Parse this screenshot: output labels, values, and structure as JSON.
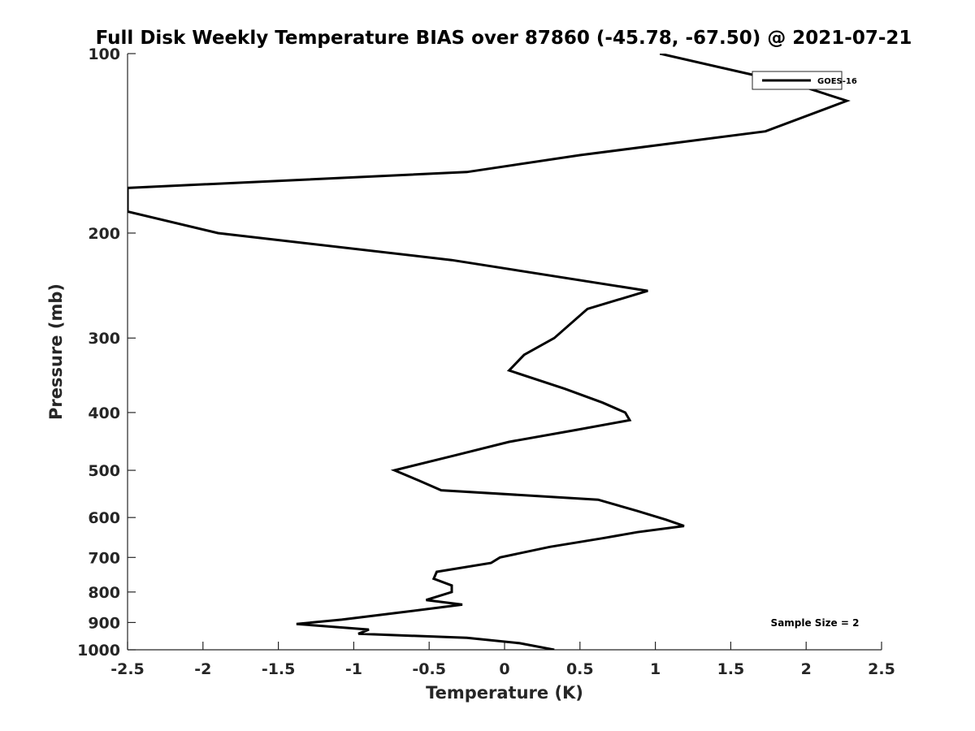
{
  "chart_data": {
    "type": "line",
    "title": "Full Disk Weekly Temperature BIAS over 87860 (-45.78, -67.50) @ 2021-07-21",
    "xlabel": "Temperature (K)",
    "ylabel": "Pressure (mb)",
    "xlim": [
      -2.5,
      2.5
    ],
    "ylim": [
      100,
      1000
    ],
    "yscale": "log",
    "yreverse": true,
    "grid": false,
    "xticks": [
      -2.5,
      -2,
      -1.5,
      -1,
      -0.5,
      0,
      0.5,
      1,
      1.5,
      2,
      2.5
    ],
    "xtick_labels": [
      "-2.5",
      "-2",
      "-1.5",
      "-1",
      "-0.5",
      "0",
      "0.5",
      "1",
      "1.5",
      "2",
      "2.5"
    ],
    "yticks": [
      100,
      200,
      300,
      400,
      500,
      600,
      700,
      800,
      900,
      1000
    ],
    "ytick_labels": [
      "100",
      "200",
      "300",
      "400",
      "500",
      "600",
      "700",
      "800",
      "900",
      "1000"
    ],
    "legend_position": "top-right",
    "annotation": "Sample Size = 2",
    "series": [
      {
        "name": "GOES-16",
        "color": "#000000",
        "points": [
          {
            "t": 1.03,
            "p": 100
          },
          {
            "t": 1.95,
            "p": 113
          },
          {
            "t": 2.27,
            "p": 120
          },
          {
            "t": 1.73,
            "p": 135
          },
          {
            "t": 0.5,
            "p": 148
          },
          {
            "t": -0.25,
            "p": 158
          },
          {
            "t": -2.5,
            "p": 168
          },
          {
            "t": -2.5,
            "p": 184
          },
          {
            "t": -1.9,
            "p": 200
          },
          {
            "t": -0.35,
            "p": 222
          },
          {
            "t": 0.95,
            "p": 250
          },
          {
            "t": 0.55,
            "p": 268
          },
          {
            "t": 0.33,
            "p": 300
          },
          {
            "t": 0.13,
            "p": 320
          },
          {
            "t": 0.03,
            "p": 340
          },
          {
            "t": 0.4,
            "p": 365
          },
          {
            "t": 0.65,
            "p": 385
          },
          {
            "t": 0.8,
            "p": 400
          },
          {
            "t": 0.83,
            "p": 412
          },
          {
            "t": 0.47,
            "p": 428
          },
          {
            "t": 0.03,
            "p": 448
          },
          {
            "t": -0.33,
            "p": 472
          },
          {
            "t": -0.73,
            "p": 500
          },
          {
            "t": -0.57,
            "p": 520
          },
          {
            "t": -0.42,
            "p": 540
          },
          {
            "t": 0.62,
            "p": 560
          },
          {
            "t": 0.88,
            "p": 585
          },
          {
            "t": 1.07,
            "p": 605
          },
          {
            "t": 1.19,
            "p": 620
          },
          {
            "t": 0.88,
            "p": 635
          },
          {
            "t": 0.65,
            "p": 650
          },
          {
            "t": 0.3,
            "p": 672
          },
          {
            "t": -0.03,
            "p": 700
          },
          {
            "t": -0.09,
            "p": 715
          },
          {
            "t": -0.45,
            "p": 740
          },
          {
            "t": -0.47,
            "p": 760
          },
          {
            "t": -0.35,
            "p": 780
          },
          {
            "t": -0.35,
            "p": 800
          },
          {
            "t": -0.52,
            "p": 825
          },
          {
            "t": -0.28,
            "p": 840
          },
          {
            "t": -0.68,
            "p": 865
          },
          {
            "t": -1.08,
            "p": 890
          },
          {
            "t": -1.38,
            "p": 905
          },
          {
            "t": -0.9,
            "p": 925
          },
          {
            "t": -0.97,
            "p": 940
          },
          {
            "t": -0.25,
            "p": 955
          },
          {
            "t": 0.1,
            "p": 975
          },
          {
            "t": 0.33,
            "p": 1000
          }
        ]
      }
    ]
  }
}
